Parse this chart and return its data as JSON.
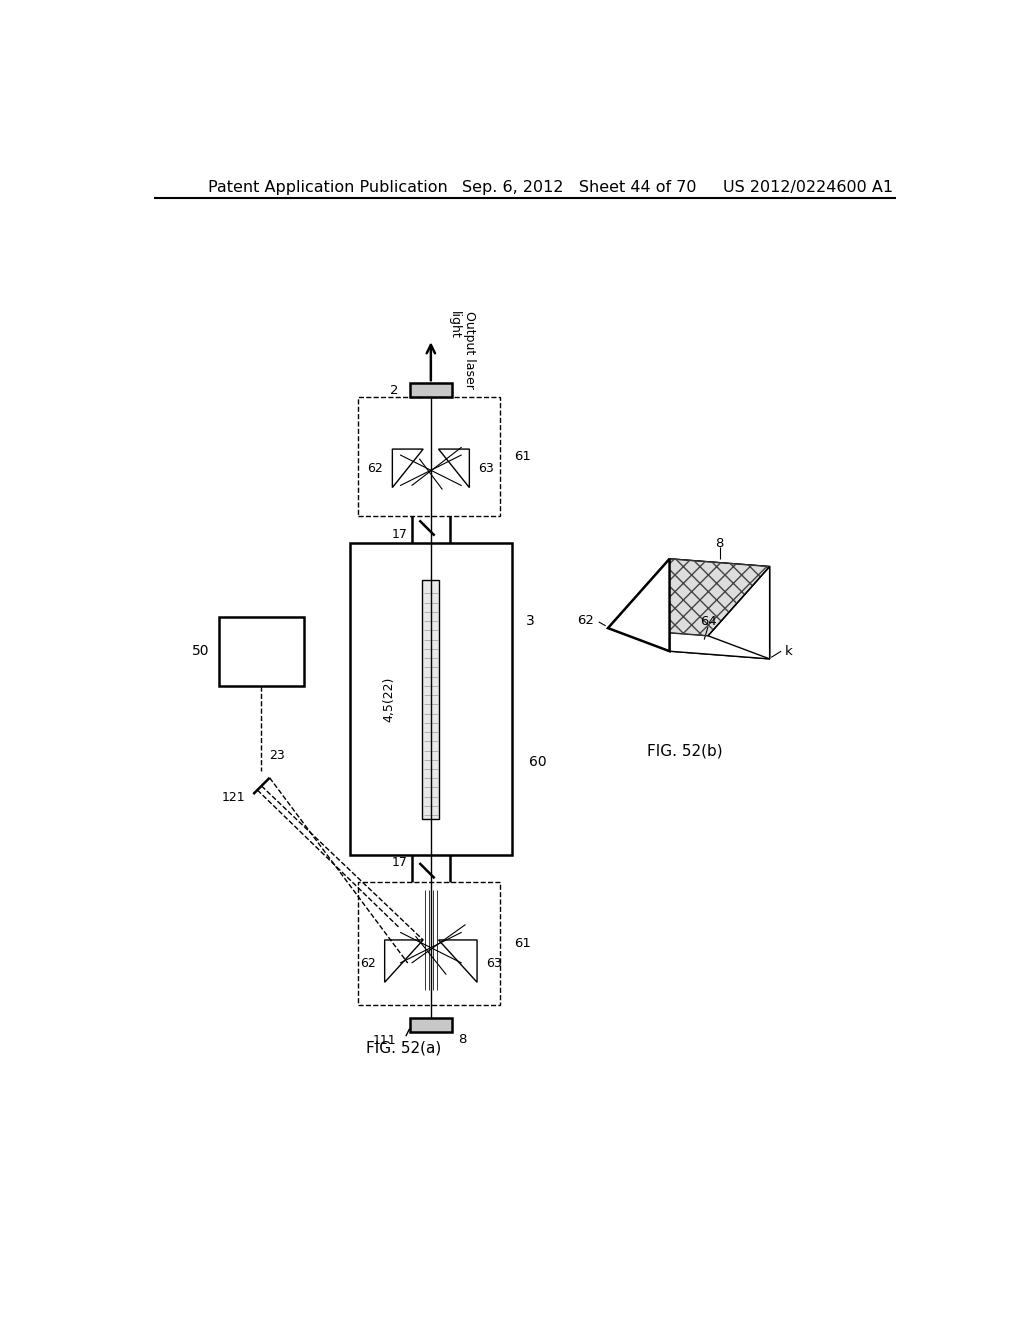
{
  "header_left": "Patent Application Publication",
  "header_mid": "Sep. 6, 2012   Sheet 44 of 70",
  "header_right": "US 2012/0224600 A1",
  "fig_a_label": "FIG. 52(a)",
  "fig_b_label": "FIG. 52(b)",
  "background": "#ffffff",
  "line_color": "#000000",
  "font_size_header": 11.5
}
